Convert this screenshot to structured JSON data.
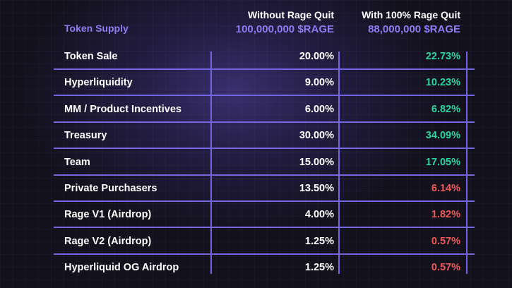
{
  "header": {
    "label": "Token Supply",
    "col1_title": "Without Rage Quit",
    "col1_supply": "100,000,000 $RAGE",
    "col2_title": "With 100% Rage Quit",
    "col2_supply": "88,000,000 $RAGE"
  },
  "colors": {
    "accent": "#8c7df2",
    "increase": "#2fd49f",
    "decrease": "#ef5a58",
    "lines": "#7465e0"
  },
  "rows": [
    {
      "label": "Token Sale",
      "without": "20.00%",
      "with": "22.73%",
      "trend": "up"
    },
    {
      "label": "Hyperliquidity",
      "without": "9.00%",
      "with": "10.23%",
      "trend": "up"
    },
    {
      "label": "MM / Product Incentives",
      "without": "6.00%",
      "with": "6.82%",
      "trend": "up"
    },
    {
      "label": "Treasury",
      "without": "30.00%",
      "with": "34.09%",
      "trend": "up"
    },
    {
      "label": "Team",
      "without": "15.00%",
      "with": "17.05%",
      "trend": "up"
    },
    {
      "label": "Private Purchasers",
      "without": "13.50%",
      "with": "6.14%",
      "trend": "down"
    },
    {
      "label": "Rage V1  (Airdrop)",
      "without": "4.00%",
      "with": "1.82%",
      "trend": "down"
    },
    {
      "label": "Rage V2  (Airdrop)",
      "without": "1.25%",
      "with": "0.57%",
      "trend": "down"
    },
    {
      "label": "Hyperliquid OG Airdrop",
      "without": "1.25%",
      "with": "0.57%",
      "trend": "down"
    }
  ]
}
